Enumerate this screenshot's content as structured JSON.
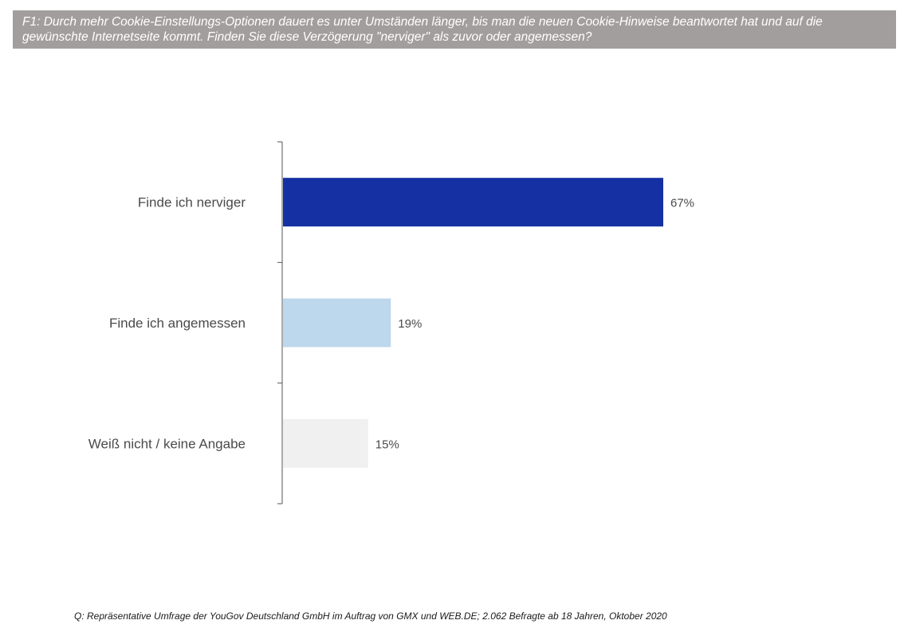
{
  "question": "F1: Durch mehr Cookie-Einstellungs-Optionen dauert es unter Umständen länger, bis man die neuen Cookie-Hinweise beantwortet hat und auf die gewünschte Internetseite kommt. Finden Sie diese Verzögerung \"nerviger\" als zuvor oder angemessen?",
  "source": "Q: Repräsentative Umfrage der YouGov Deutschland GmbH im Auftrag von GMX und WEB.DE; 2.062 Befragte ab 18 Jahren, Oktober 2020",
  "colors": {
    "banner": "#a39e9e",
    "axis": "#555555"
  },
  "chart_data": {
    "type": "bar",
    "orientation": "horizontal",
    "categories": [
      "Finde ich nerviger",
      "Finde ich angemessen",
      "Weiß nicht / keine Angabe"
    ],
    "values": [
      67,
      19,
      15
    ],
    "value_labels": [
      "67%",
      "19%",
      "15%"
    ],
    "bar_colors": [
      "#1530a3",
      "#bdd7ed",
      "#f0f0f0"
    ],
    "unit": "%",
    "xlim": [
      0,
      100
    ],
    "grid": false,
    "legend": "none",
    "title": "",
    "xlabel": "",
    "ylabel": ""
  }
}
